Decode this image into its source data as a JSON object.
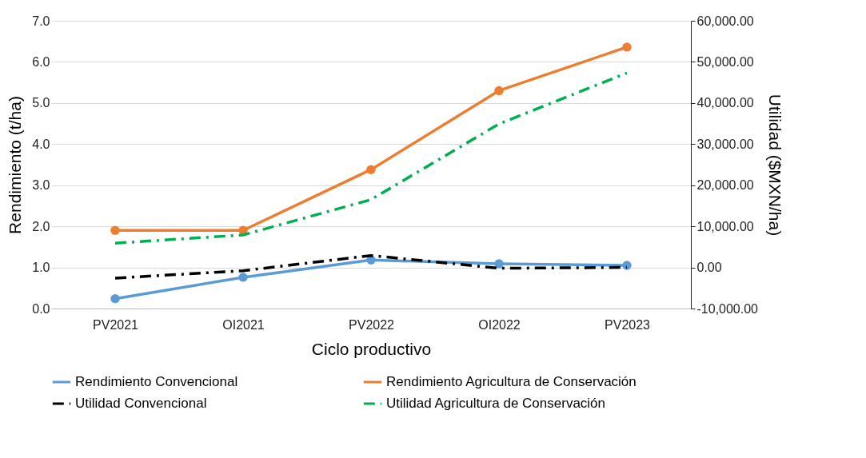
{
  "chart_data": {
    "type": "line",
    "xlabel": "Ciclo productivo",
    "ylabel": "Rendimiento (t/ha)",
    "y2label": "Utilidad ($MXN/ha)",
    "categories": [
      "PV2021",
      "OI2021",
      "PV2022",
      "OI2022",
      "PV2023"
    ],
    "series": [
      {
        "name": "Rendimiento Convencional",
        "color": "#5b9bd5",
        "marker": "circle",
        "line_style": "solid",
        "values": [
          0.24,
          0.76,
          1.18,
          1.09,
          1.05
        ]
      },
      {
        "name": "Rendimiento Agricultura de Conservación",
        "color": "#ed7d31",
        "marker": "circle",
        "line_style": "solid",
        "values": [
          1.9,
          1.9,
          3.38,
          5.3,
          6.36
        ]
      },
      {
        "name": "Utilidad Convencional",
        "color": "#000000",
        "axis": "y2",
        "marker": "none",
        "line_style": "dashed",
        "values": [
          -2600,
          -800,
          2900,
          -200,
          0
        ]
      },
      {
        "name": "Utilidad Agricultura de Conservación",
        "color": "#00b050",
        "axis": "y2",
        "marker": "none",
        "line_style": "dashed",
        "values": [
          5900,
          7900,
          16500,
          34900,
          47300
        ]
      }
    ],
    "ylim": [
      0,
      7
    ],
    "yticks": [
      {
        "value": 0,
        "label": "0.0"
      },
      {
        "value": 1,
        "label": "1.0"
      },
      {
        "value": 2,
        "label": "2.0"
      },
      {
        "value": 3,
        "label": "3.0"
      },
      {
        "value": 4,
        "label": "4.0"
      },
      {
        "value": 5,
        "label": "5.0"
      },
      {
        "value": 6,
        "label": "6.0"
      },
      {
        "value": 7,
        "label": "7.0"
      }
    ],
    "y2lim": [
      -10000,
      60000
    ],
    "y2ticks": [
      {
        "value": -10000,
        "label": "-10,000.00"
      },
      {
        "value": 0,
        "label": "0.00"
      },
      {
        "value": 10000,
        "label": "10,000.00"
      },
      {
        "value": 20000,
        "label": "20,000.00"
      },
      {
        "value": 30000,
        "label": "30,000.00"
      },
      {
        "value": 40000,
        "label": "40,000.00"
      },
      {
        "value": 50000,
        "label": "50,000.00"
      },
      {
        "value": 60000,
        "label": "60,000.00"
      }
    ],
    "grid": "y",
    "legend": "bottom"
  }
}
